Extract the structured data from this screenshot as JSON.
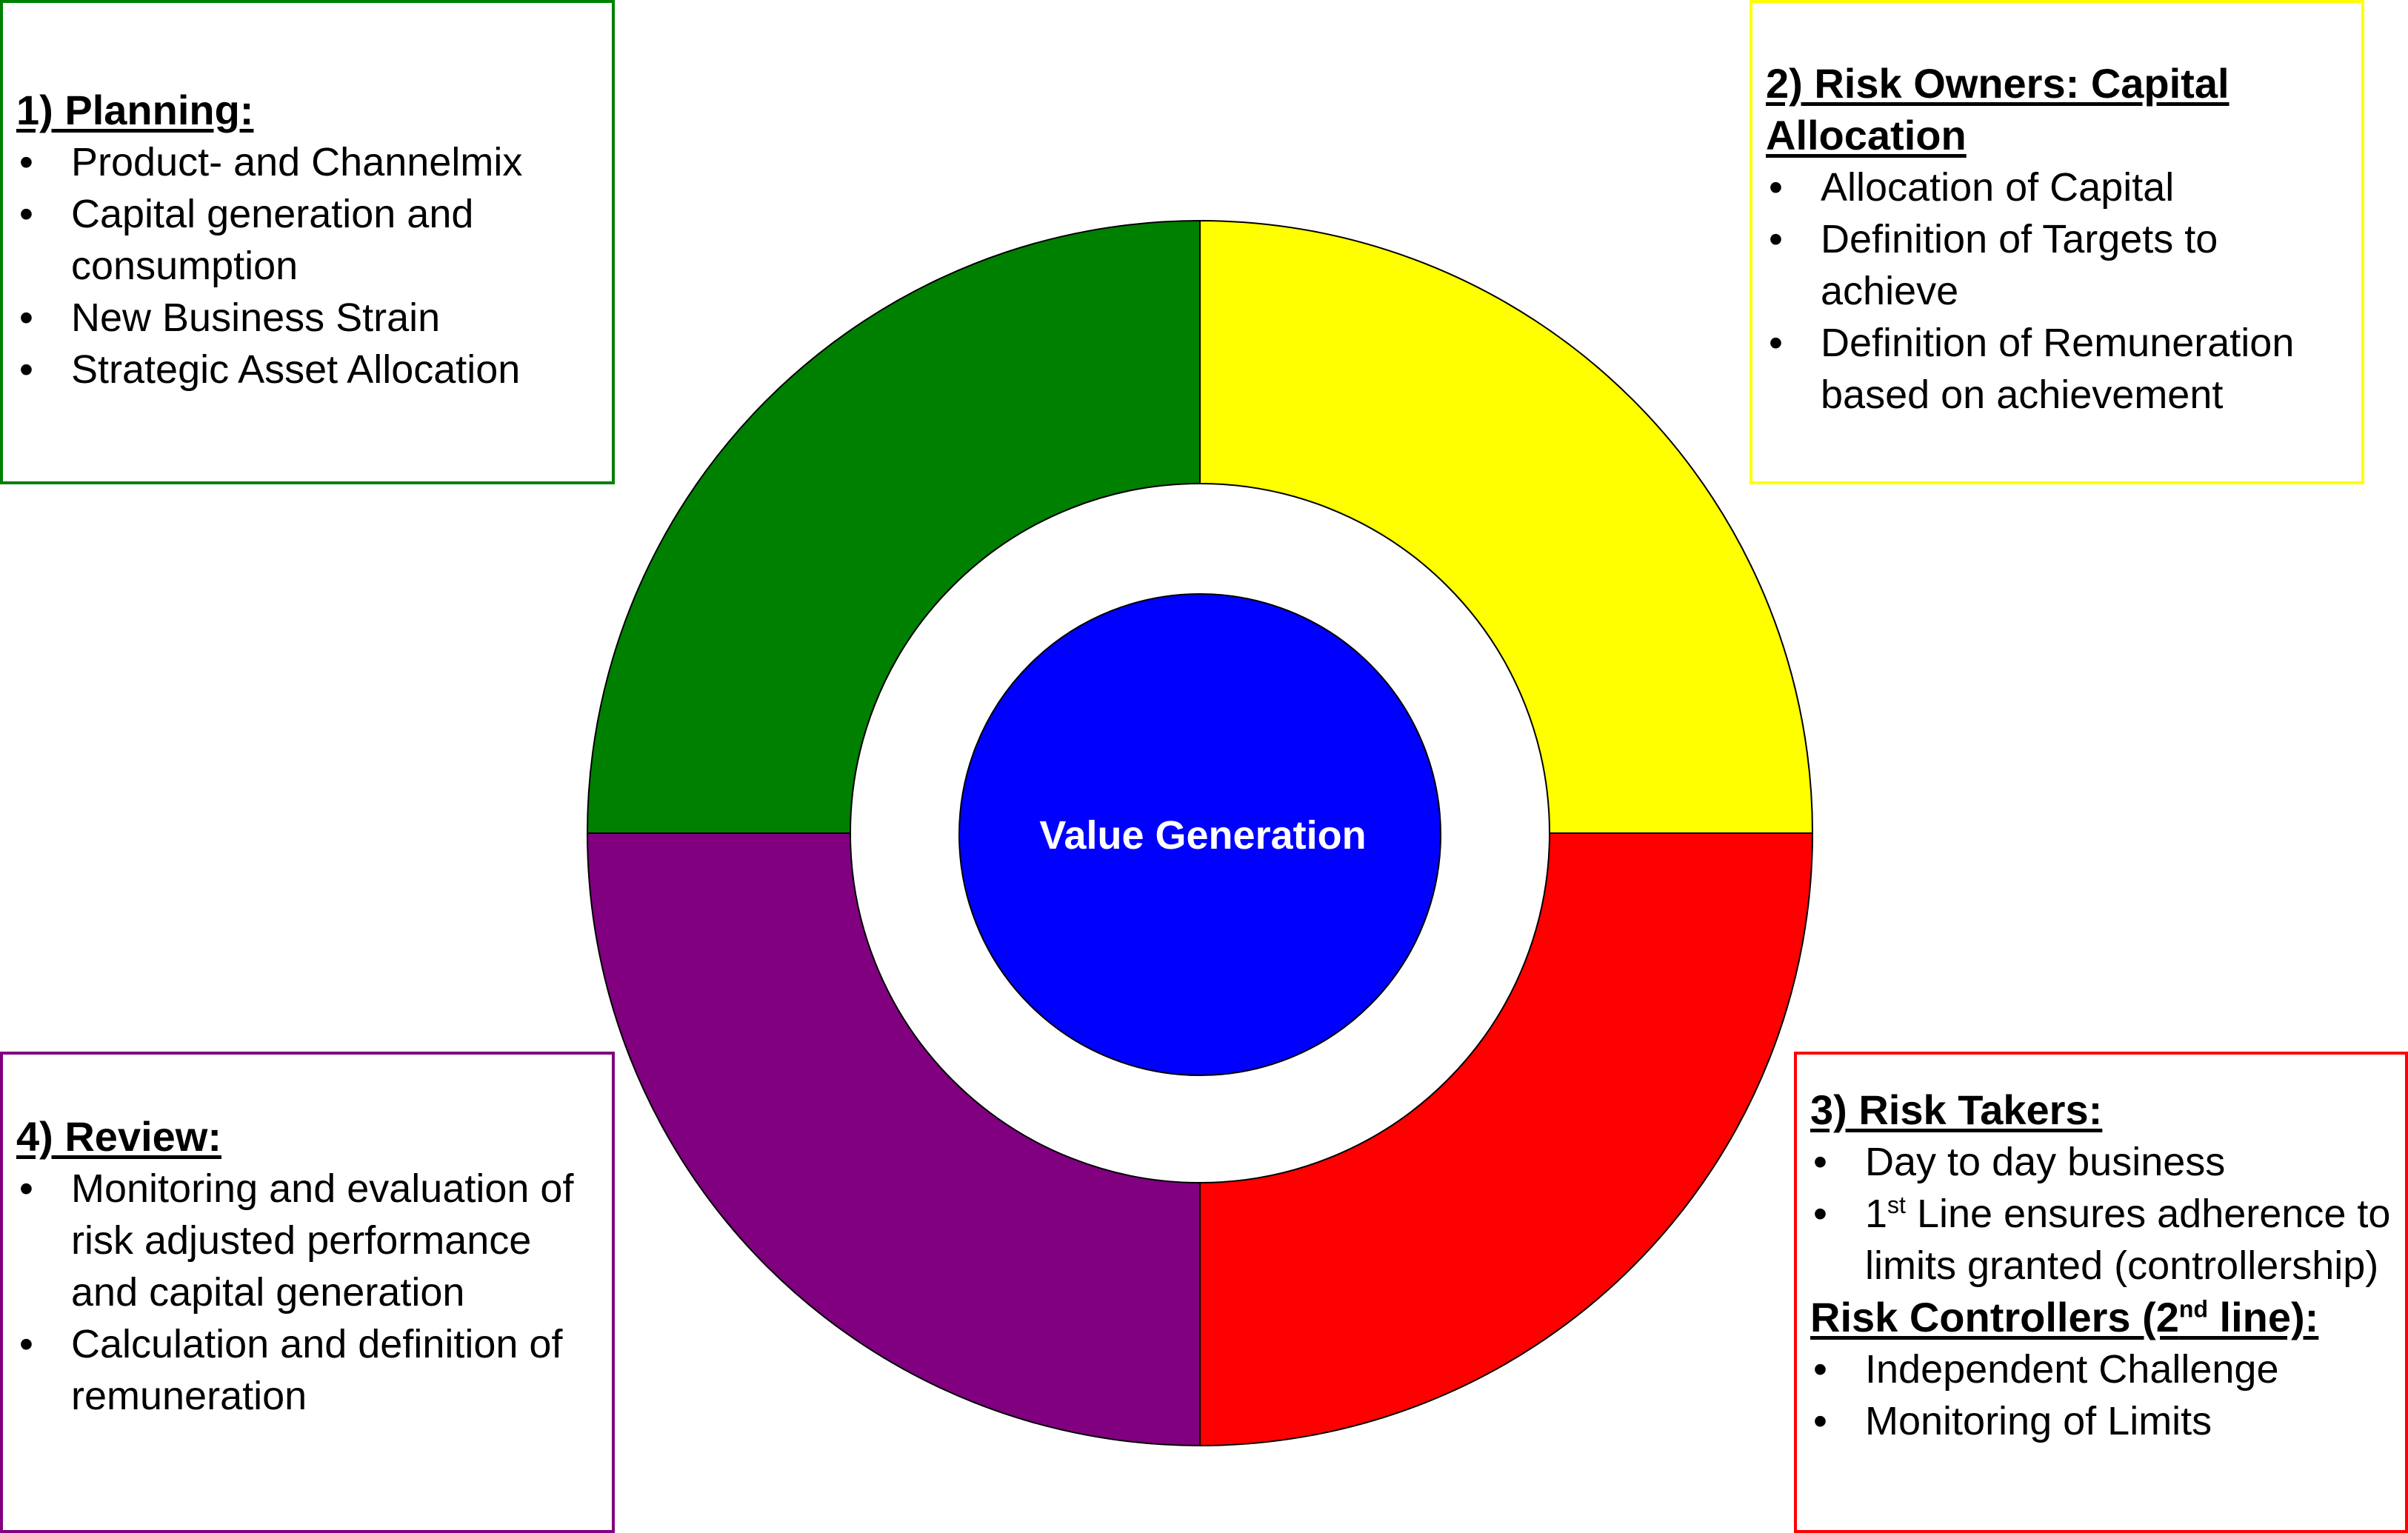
{
  "colors": {
    "planning": "#008000",
    "risk_owners": "#ffff00",
    "risk_takers": "#ff0000",
    "review": "#800080",
    "center": "#0000ff",
    "center_text": "#ffffff"
  },
  "center": {
    "label": "Value Generation"
  },
  "boxes": {
    "planning": {
      "title": "1) Planning:",
      "items": [
        "Product- and Channelmix",
        "Capital generation and consumption",
        "New Business Strain",
        "Strategic Asset Allocation"
      ]
    },
    "risk_owners": {
      "title": "2) Risk Owners: Capital Allocation",
      "items": [
        "Allocation of Capital",
        "Definition of Targets to achieve",
        "Definition of Remuneration based on achievement"
      ]
    },
    "risk_takers": {
      "title": "3) Risk Takers:",
      "items": [
        "Day to day business"
      ],
      "first_line": {
        "num": "1",
        "sup": "st",
        "text": " Line ensures adherence to limits granted (controllership)"
      },
      "controllers_title_pre": "Risk Controllers (2",
      "controllers_title_sup": "nd",
      "controllers_title_post": " line):",
      "controllers_items": [
        "Independent Challenge",
        "Monitoring of Limits"
      ]
    },
    "review": {
      "title": "4) Review:",
      "items": [
        "Monitoring and evaluation of risk adjusted performance and capital generation",
        "Calculation and definition of remuneration"
      ]
    }
  }
}
